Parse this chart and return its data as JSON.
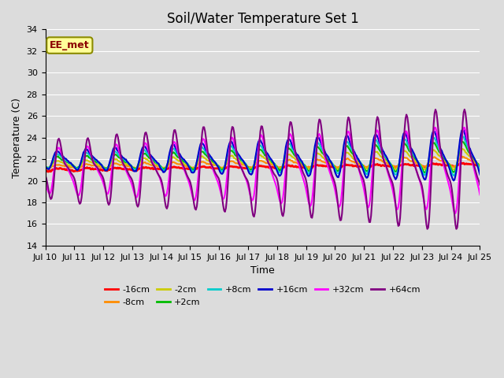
{
  "title": "Soil/Water Temperature Set 1",
  "xlabel": "Time",
  "ylabel": "Temperature (C)",
  "ylim": [
    14,
    34
  ],
  "x_tick_labels": [
    "Jul 10",
    "Jul 11",
    "Jul 12",
    "Jul 13",
    "Jul 14",
    "Jul 15",
    "Jul 16",
    "Jul 17",
    "Jul 18",
    "Jul 19",
    "Jul 20",
    "Jul 21",
    "Jul 22",
    "Jul 23",
    "Jul 24",
    "Jul 25"
  ],
  "annotation_text": "EE_met",
  "annotation_color": "#8B0000",
  "annotation_bg": "#FFFF99",
  "annotation_border": "#8B8B00",
  "bg_color": "#DCDCDC",
  "grid_color": "#FFFFFF",
  "series": [
    {
      "label": "-16cm",
      "color": "#FF0000",
      "lw": 2.0
    },
    {
      "label": "-8cm",
      "color": "#FF8C00",
      "lw": 1.5
    },
    {
      "label": "-2cm",
      "color": "#CCCC00",
      "lw": 1.5
    },
    {
      "label": "+2cm",
      "color": "#00BB00",
      "lw": 1.5
    },
    {
      "label": "+8cm",
      "color": "#00CCCC",
      "lw": 1.5
    },
    {
      "label": "+16cm",
      "color": "#0000CC",
      "lw": 1.5
    },
    {
      "label": "+32cm",
      "color": "#FF00FF",
      "lw": 1.5
    },
    {
      "label": "+64cm",
      "color": "#800080",
      "lw": 1.5
    }
  ],
  "title_fontsize": 12,
  "axis_fontsize": 9,
  "tick_fontsize": 8
}
